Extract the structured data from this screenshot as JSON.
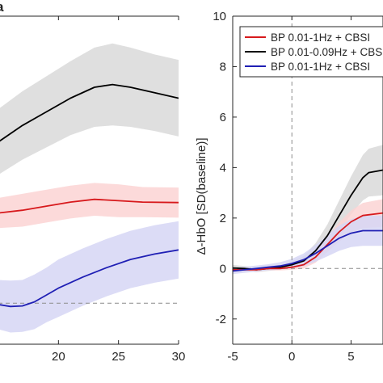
{
  "chart_data": [
    {
      "type": "line",
      "panel_letter": "a",
      "xlim": [
        15,
        30
      ],
      "ylim": [
        -1.5,
        10.5
      ],
      "x_ticks": [
        20,
        25,
        30
      ],
      "x_tick_labels": [
        "20",
        "25",
        "30"
      ],
      "grid": false,
      "reference_lines": {
        "y0_dashed": true
      },
      "series": [
        {
          "color": "#000000",
          "band_color": "#d9d9d9",
          "x": [
            15,
            17,
            19,
            21,
            23,
            24.5,
            26,
            28,
            30
          ],
          "y": [
            5.9,
            6.5,
            7.0,
            7.5,
            7.9,
            8.0,
            7.9,
            7.7,
            7.5
          ],
          "band_halfwidth": [
            1.2,
            1.25,
            1.3,
            1.35,
            1.45,
            1.5,
            1.45,
            1.4,
            1.4
          ]
        },
        {
          "color": "#d7191c",
          "band_color": "#fbd4d4",
          "x": [
            15,
            17,
            19,
            21,
            23,
            25,
            27,
            30
          ],
          "y": [
            3.3,
            3.4,
            3.55,
            3.7,
            3.8,
            3.75,
            3.7,
            3.68
          ],
          "band_halfwidth": [
            0.55,
            0.6,
            0.6,
            0.6,
            0.6,
            0.6,
            0.55,
            0.55
          ]
        },
        {
          "color": "#1f1fb4",
          "band_color": "#d6d6f5",
          "x": [
            15,
            16,
            17,
            18,
            19,
            20,
            22,
            24,
            26,
            28,
            30
          ],
          "y": [
            -0.05,
            -0.12,
            -0.1,
            0.05,
            0.3,
            0.55,
            0.95,
            1.3,
            1.6,
            1.8,
            1.95
          ],
          "band_halfwidth": [
            0.9,
            0.95,
            0.95,
            1.0,
            1.0,
            1.05,
            1.05,
            1.05,
            1.05,
            1.05,
            1.05
          ]
        }
      ]
    },
    {
      "type": "line",
      "ylabel": "Δ-HbO [SD(baseline)]",
      "xlim": [
        -5,
        7.7
      ],
      "ylim": [
        -3,
        10
      ],
      "x_ticks": [
        -5,
        0,
        5
      ],
      "x_tick_labels": [
        "-5",
        "0",
        "5"
      ],
      "y_ticks": [
        -2,
        0,
        2,
        4,
        6,
        8,
        10
      ],
      "y_tick_labels": [
        "-2",
        "0",
        "2",
        "4",
        "6",
        "8",
        "10"
      ],
      "grid": false,
      "reference_lines": {
        "y0_dashed": true,
        "x0_dashed": true
      },
      "legend": {
        "placement": "top-right",
        "entries": [
          {
            "label": "BP 0.01-1Hz + CBSI",
            "color": "#d7191c"
          },
          {
            "label": "BP 0.01-0.09Hz + CBSI",
            "color": "#000000"
          },
          {
            "label": "BP 0.01-1Hz + CBSI",
            "color": "#1f1fb4"
          }
        ]
      },
      "series": [
        {
          "color": "#000000",
          "band_color": "#d9d9d9",
          "x": [
            -5,
            -4,
            -3,
            -2,
            -1,
            0,
            1,
            2,
            3,
            4,
            5,
            6,
            6.5,
            7.7
          ],
          "y": [
            0.02,
            0,
            -0.05,
            0,
            0.05,
            0.15,
            0.3,
            0.7,
            1.3,
            2.1,
            2.9,
            3.6,
            3.8,
            3.9
          ],
          "band_halfwidth": [
            0.12,
            0.1,
            0.1,
            0.1,
            0.1,
            0.12,
            0.2,
            0.3,
            0.45,
            0.6,
            0.75,
            0.9,
            0.95,
            1.0
          ]
        },
        {
          "color": "#d7191c",
          "band_color": "#fbd4d4",
          "x": [
            -5,
            -4,
            -3,
            -2,
            -1,
            0,
            1,
            2,
            3,
            4,
            5,
            6,
            7.7
          ],
          "y": [
            -0.05,
            -0.05,
            -0.05,
            0,
            0,
            0.05,
            0.15,
            0.45,
            0.95,
            1.45,
            1.85,
            2.1,
            2.2
          ],
          "band_halfwidth": [
            0.08,
            0.08,
            0.08,
            0.08,
            0.08,
            0.1,
            0.15,
            0.22,
            0.3,
            0.38,
            0.45,
            0.5,
            0.55
          ]
        },
        {
          "color": "#1f1fb4",
          "band_color": "#d6d6f5",
          "x": [
            -5,
            -4,
            -3,
            -2,
            -1,
            0,
            1,
            2,
            3,
            4,
            5,
            6,
            7.7
          ],
          "y": [
            -0.1,
            -0.05,
            0,
            0.05,
            0.1,
            0.2,
            0.35,
            0.6,
            0.9,
            1.2,
            1.4,
            1.5,
            1.5
          ],
          "band_halfwidth": [
            0.12,
            0.12,
            0.12,
            0.12,
            0.15,
            0.18,
            0.25,
            0.33,
            0.42,
            0.5,
            0.55,
            0.6,
            0.6
          ]
        }
      ]
    }
  ]
}
